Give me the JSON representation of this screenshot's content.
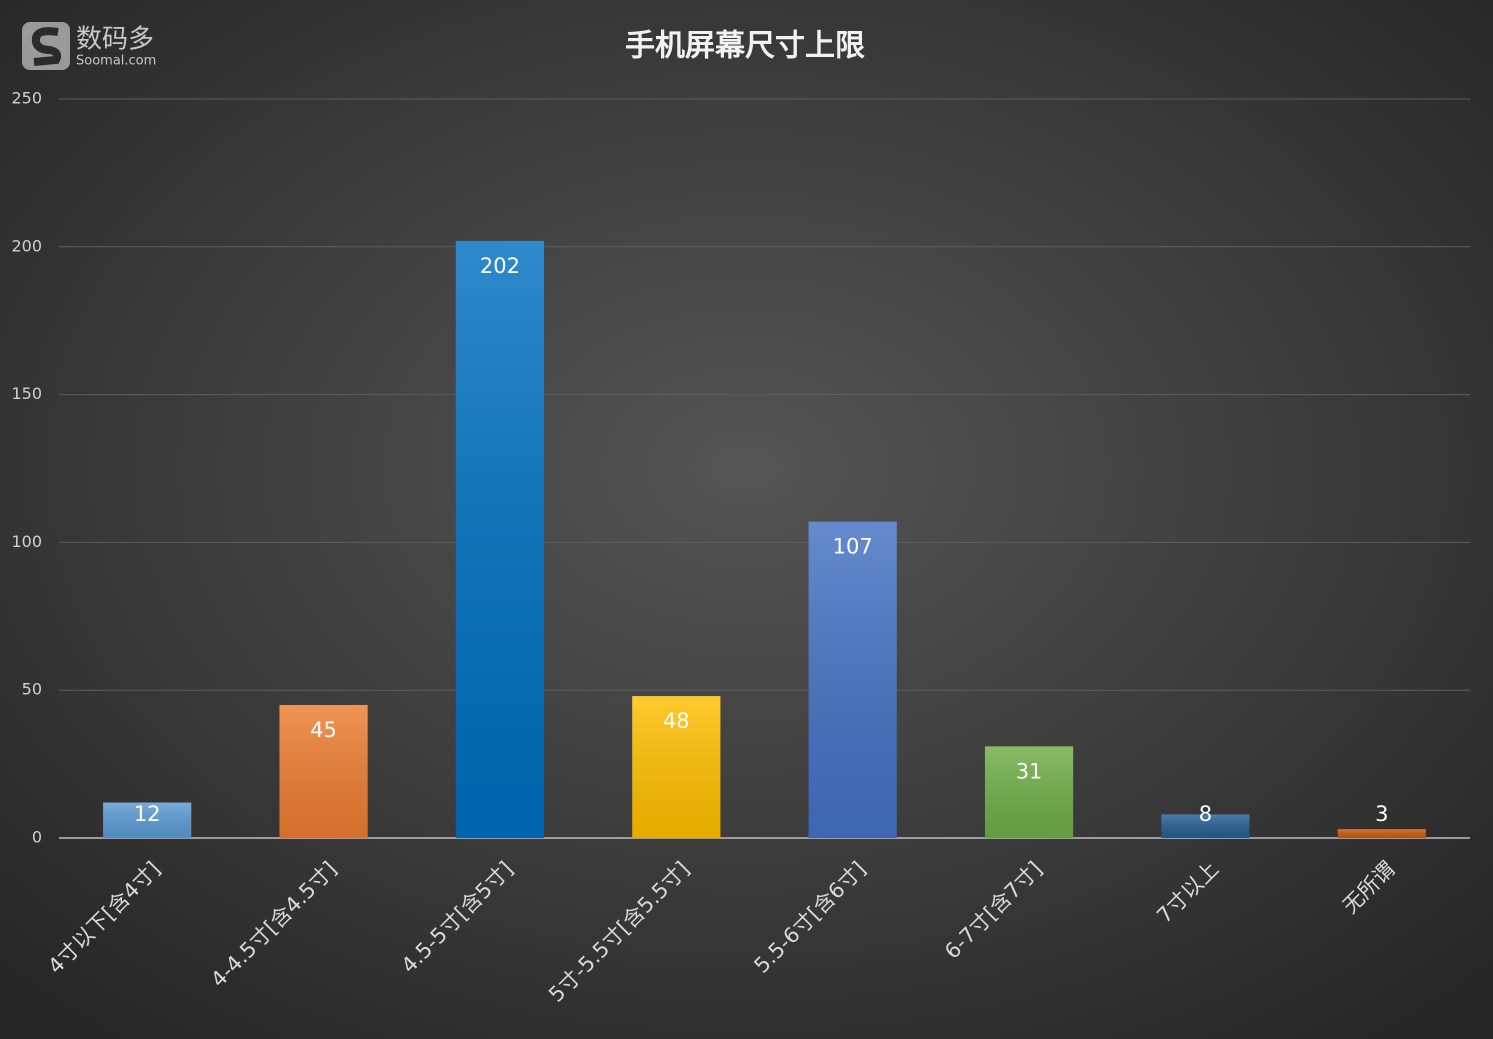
{
  "watermark": {
    "name": "数码多",
    "site": "Soomal.com"
  },
  "chart_data": {
    "type": "bar",
    "title": "手机屏幕尺寸上限",
    "categories": [
      "4寸以下[含4寸]",
      "4-4.5寸[含4.5寸]",
      "4.5-5寸[含5寸]",
      "5寸-5.5寸[含5.5寸]",
      "5.5-6寸[含6寸]",
      "6-7寸[含7寸]",
      "7寸以上",
      "无所谓"
    ],
    "values": [
      12,
      45,
      202,
      48,
      107,
      31,
      8,
      3
    ],
    "colors": [
      "#5b9bd5",
      "#ed7d31",
      "#0070c0",
      "#ffc000",
      "#4472c4",
      "#70ad47",
      "#255e91",
      "#c55a11"
    ],
    "ylim": [
      0,
      250
    ],
    "yticks": [
      0,
      50,
      100,
      150,
      200,
      250
    ],
    "grid": true
  }
}
